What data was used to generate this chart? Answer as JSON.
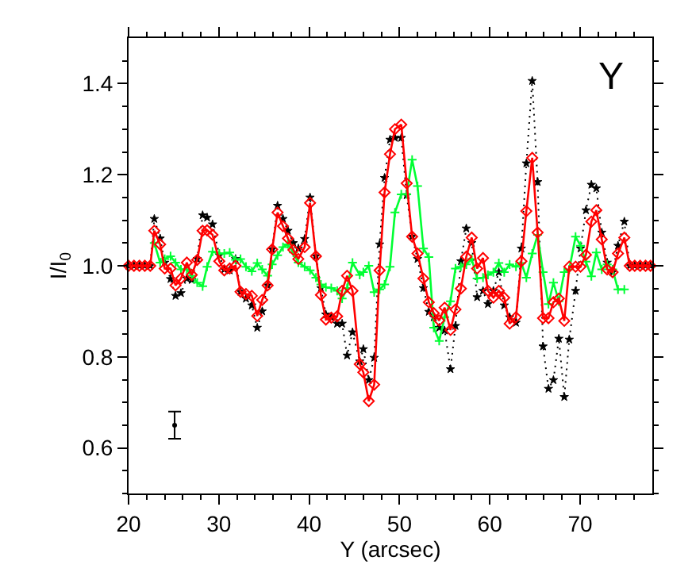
{
  "chart_data": {
    "type": "line",
    "xlabel": "Y (arcsec)",
    "ylabel": "I/I$_{0}$",
    "annotations": [
      "Y"
    ],
    "xlim": [
      20,
      78
    ],
    "ylim": [
      0.5,
      1.5
    ],
    "xticks": [
      20,
      {
        "value": 22,
        "label": null
      },
      {
        "value": 24,
        "label": null
      },
      {
        "value": 26,
        "label": null
      },
      {
        "value": 28,
        "label": null
      },
      30,
      {
        "value": 32,
        "label": null
      },
      {
        "value": 34,
        "label": null
      },
      {
        "value": 36,
        "label": null
      },
      {
        "value": 38,
        "label": null
      },
      40,
      {
        "value": 42,
        "label": null
      },
      {
        "value": 44,
        "label": null
      },
      {
        "value": 46,
        "label": null
      },
      {
        "value": 48,
        "label": null
      },
      50,
      {
        "value": 52,
        "label": null
      },
      {
        "value": 54,
        "label": null
      },
      {
        "value": 56,
        "label": null
      },
      {
        "value": 58,
        "label": null
      },
      60,
      {
        "value": 62,
        "label": null
      },
      {
        "value": 64,
        "label": null
      },
      {
        "value": 66,
        "label": null
      },
      {
        "value": 68,
        "label": null
      },
      70,
      {
        "value": 72,
        "label": null
      },
      {
        "value": 74,
        "label": null
      },
      {
        "value": 76,
        "label": null
      }
    ],
    "yticks": [
      {
        "value": 0.5,
        "label": null
      },
      {
        "value": 0.55,
        "label": null
      },
      {
        "value": 0.6,
        "label": "0.6"
      },
      {
        "value": 0.65,
        "label": null
      },
      {
        "value": 0.7,
        "label": null
      },
      {
        "value": 0.75,
        "label": null
      },
      {
        "value": 0.8,
        "label": "0.8"
      },
      {
        "value": 0.85,
        "label": null
      },
      {
        "value": 0.9,
        "label": null
      },
      {
        "value": 0.95,
        "label": null
      },
      {
        "value": 1.0,
        "label": "1.0"
      },
      {
        "value": 1.05,
        "label": null
      },
      {
        "value": 1.1,
        "label": null
      },
      {
        "value": 1.15,
        "label": null
      },
      {
        "value": 1.2,
        "label": "1.2"
      },
      {
        "value": 1.25,
        "label": null
      },
      {
        "value": 1.3,
        "label": null
      },
      {
        "value": 1.35,
        "label": null
      },
      {
        "value": 1.4,
        "label": "1.4"
      },
      {
        "value": 1.45,
        "label": null
      }
    ],
    "x": [
      20,
      20.6,
      21.2,
      21.8,
      22.4,
      22.85,
      23.5,
      24.0,
      24.65,
      25.2,
      25.8,
      26.45,
      27.0,
      27.6,
      28.2,
      28.7,
      29.3,
      30.05,
      30.6,
      31.2,
      31.85,
      32.4,
      33.0,
      33.65,
      34.25,
      34.8,
      35.4,
      35.9,
      36.5,
      37.1,
      37.65,
      38.25,
      38.8,
      39.5,
      40.1,
      40.75,
      41.3,
      41.85,
      42.45,
      43.1,
      43.65,
      44.2,
      44.8,
      45.6,
      46.0,
      46.6,
      47.2,
      47.8,
      48.35,
      48.95,
      49.5,
      50.2,
      50.8,
      51.4,
      52.0,
      52.65,
      53.25,
      53.8,
      54.4,
      55.0,
      55.65,
      56.2,
      56.8,
      57.4,
      58.0,
      58.6,
      59.25,
      59.8,
      60.4,
      61.0,
      61.6,
      62.2,
      62.9,
      63.5,
      64.05,
      64.7,
      65.3,
      65.9,
      66.5,
      67.05,
      67.65,
      68.25,
      68.8,
      69.5,
      70.05,
      70.65,
      71.25,
      71.8,
      72.4,
      73.0,
      73.6,
      74.2,
      74.9,
      75.5,
      76.05,
      76.65,
      77.25,
      77.8
    ],
    "series": [
      {
        "color": "#000000",
        "marker": "star",
        "line_style": "dotted",
        "values": [
          1.0,
          1.0,
          1.0,
          1.0,
          1.0,
          1.103,
          1.06,
          1.007,
          0.971,
          0.934,
          0.94,
          0.972,
          0.969,
          1.015,
          1.111,
          1.106,
          1.091,
          1.023,
          0.992,
          0.99,
          1.015,
          0.943,
          0.928,
          0.913,
          0.864,
          0.9,
          0.957,
          1.036,
          1.132,
          1.103,
          1.077,
          1.05,
          1.038,
          1.059,
          1.15,
          1.021,
          0.951,
          0.893,
          0.887,
          0.873,
          0.873,
          0.803,
          0.854,
          0.79,
          0.817,
          0.749,
          0.798,
          1.047,
          1.193,
          1.277,
          1.281,
          1.281,
          1.155,
          1.064,
          1.015,
          0.951,
          0.899,
          0.887,
          0.864,
          0.858,
          0.773,
          0.868,
          1.01,
          1.082,
          1.05,
          0.931,
          0.945,
          0.916,
          0.945,
          0.986,
          0.913,
          0.887,
          0.875,
          1.038,
          1.225,
          1.406,
          1.184,
          0.823,
          0.73,
          0.749,
          0.84,
          0.712,
          0.838,
          0.945,
          1.038,
          1.122,
          1.178,
          1.17,
          1.073,
          1.007,
          0.986,
          1.044,
          1.097,
          1.0,
          1.0,
          1.0,
          1.0,
          1.0
        ]
      },
      {
        "color": "#00ff33",
        "marker": "cross",
        "line_style": "solid",
        "x": [
          22.85,
          23.5,
          24.0,
          24.65,
          25.2,
          25.8,
          26.45,
          27.0,
          27.6,
          28.2,
          28.7,
          29.3,
          30.05,
          30.6,
          31.2,
          31.85,
          32.4,
          33.0,
          33.65,
          34.25,
          34.8,
          35.4,
          35.9,
          36.5,
          37.1,
          37.65,
          38.25,
          38.8,
          39.5,
          40.1,
          40.75,
          41.3,
          41.85,
          42.45,
          43.1,
          43.65,
          44.2,
          44.8,
          45.6,
          46.0,
          46.6,
          47.2,
          47.8,
          48.35,
          48.95,
          49.5,
          50.2,
          50.8,
          51.4,
          52.0,
          52.65,
          53.25,
          53.8,
          54.4,
          55.0,
          55.65,
          56.2,
          56.8,
          57.4,
          58.0,
          58.6,
          59.25,
          59.8,
          60.4,
          61.0,
          61.6,
          62.2,
          62.9,
          63.5,
          64.05,
          64.7,
          65.3,
          65.9,
          66.5,
          67.05,
          67.65,
          68.25,
          68.8,
          69.5,
          70.05,
          70.65,
          71.25,
          71.8,
          72.4,
          73.0,
          73.6,
          74.2,
          74.9
        ],
        "values": [
          1.05,
          1.007,
          1.015,
          1.021,
          1.007,
          0.992,
          0.992,
          0.978,
          0.963,
          0.955,
          0.998,
          1.031,
          1.027,
          1.027,
          1.029,
          1.013,
          1.015,
          0.998,
          0.988,
          1.006,
          0.992,
          0.978,
          1.003,
          1.023,
          1.041,
          1.047,
          1.029,
          1.007,
          0.998,
          0.99,
          0.974,
          0.959,
          0.953,
          0.951,
          0.945,
          0.928,
          0.951,
          1.007,
          0.98,
          0.986,
          1.0,
          0.942,
          0.948,
          0.959,
          0.998,
          1.117,
          1.157,
          1.157,
          1.233,
          1.175,
          1.038,
          1.019,
          0.864,
          0.835,
          0.887,
          0.922,
          0.994,
          0.998,
          1.003,
          1.015,
          0.972,
          0.974,
          0.98,
          0.986,
          1.006,
          0.986,
          1.003,
          0.998,
          1.006,
          0.974,
          1.027,
          1.068,
          0.986,
          0.916,
          0.963,
          0.922,
          0.986,
          0.992,
          1.064,
          1.044,
          1.009,
          0.977,
          1.029,
          0.992,
          1.003,
          0.992,
          0.948,
          0.948
        ]
      },
      {
        "color": "#ff0000",
        "marker": "diamond",
        "line_style": "solid",
        "values": [
          1.0,
          1.0,
          1.0,
          1.0,
          1.0,
          1.077,
          1.047,
          0.994,
          0.994,
          0.957,
          0.972,
          1.007,
          0.98,
          1.013,
          1.077,
          1.078,
          1.068,
          1.01,
          0.99,
          0.994,
          1.0,
          0.943,
          0.938,
          0.934,
          0.89,
          0.925,
          0.957,
          1.036,
          1.117,
          1.087,
          1.06,
          1.035,
          1.015,
          1.041,
          1.138,
          1.021,
          0.936,
          0.882,
          0.886,
          0.889,
          0.945,
          0.978,
          0.945,
          0.784,
          0.766,
          0.703,
          0.739,
          0.99,
          1.161,
          1.245,
          1.3,
          1.31,
          1.181,
          1.064,
          1.027,
          0.972,
          0.92,
          0.896,
          0.88,
          0.908,
          0.859,
          0.904,
          0.95,
          1.02,
          1.062,
          0.994,
          1.017,
          0.945,
          0.93,
          0.945,
          0.93,
          0.873,
          0.887,
          1.01,
          1.12,
          1.237,
          1.073,
          0.885,
          0.885,
          0.92,
          0.928,
          0.879,
          0.998,
          0.998,
          0.998,
          1.024,
          1.097,
          1.122,
          1.058,
          0.992,
          0.986,
          1.027,
          1.062,
          1.0,
          1.0,
          1.0,
          1.0,
          1.0
        ]
      },
      {
        "type": "scatter",
        "color": "#000000",
        "x": [
          25.1
        ],
        "values": [
          0.65
        ],
        "errors": [
          0.03
        ]
      }
    ]
  }
}
